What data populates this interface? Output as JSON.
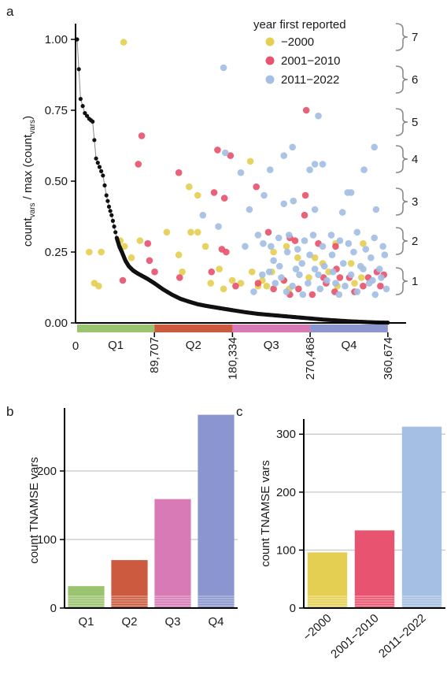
{
  "panel_labels": {
    "a": "a",
    "b": "b",
    "c": "c"
  },
  "colors": {
    "pre2000": "#e5cf52",
    "y2001_2010": "#e8546f",
    "y2011_2022": "#a4bfe3",
    "curve": "#111111",
    "q1": "#9ac46f",
    "q2": "#cc5a3e",
    "q3": "#d87ab5",
    "q4": "#8b95cf",
    "grid": "#cccccc",
    "bracket": "#8a8a8a"
  },
  "chart_data": [
    {
      "panel": "a",
      "type": "scatter",
      "ylabel": {
        "base": "count",
        "sub": "vars",
        "mid": " / max (count",
        "sub2": "vars",
        "end": ")"
      },
      "ylim": [
        0,
        1.05
      ],
      "yticks": [
        "1.00",
        "0.75",
        "0.50",
        "0.25",
        "0.00"
      ],
      "ytick_values": [
        1.0,
        0.75,
        0.5,
        0.25,
        0.0
      ],
      "xlim": [
        0,
        380000
      ],
      "xticks": [
        "0",
        "89,707",
        "180,334",
        "270,468",
        "360,674"
      ],
      "xtick_values": [
        0,
        89707,
        180334,
        270468,
        360674
      ],
      "quartiles": [
        {
          "label": "Q1",
          "start": 0,
          "end": 89707
        },
        {
          "label": "Q2",
          "start": 89707,
          "end": 180334
        },
        {
          "label": "Q3",
          "start": 180334,
          "end": 270468
        },
        {
          "label": "Q4",
          "start": 270468,
          "end": 360674
        }
      ],
      "legend": {
        "title": "year first reported",
        "entries": [
          "−2000",
          "2001−2010",
          "2011−2022"
        ],
        "placement": "top-right"
      },
      "brackets": [
        "7",
        "6",
        "5",
        "4",
        "3",
        "2",
        "1"
      ],
      "curve": {
        "x": [
          0,
          4000,
          9000,
          14000,
          18000,
          22000,
          26000,
          30000,
          34000,
          37000,
          40000,
          43000,
          46000,
          49000,
          52000,
          56000,
          60000,
          65000,
          70000,
          76000,
          82000,
          89707,
          100000,
          110000,
          120000,
          130000,
          140000,
          150000,
          160000,
          170000,
          180334,
          195000,
          210000,
          225000,
          240000,
          255000,
          270468,
          285000,
          300000,
          315000,
          330000,
          345000,
          360674
        ],
        "y": [
          1.0,
          0.79,
          0.74,
          0.72,
          0.71,
          0.58,
          0.55,
          0.52,
          0.45,
          0.41,
          0.38,
          0.34,
          0.3,
          0.27,
          0.25,
          0.22,
          0.2,
          0.185,
          0.175,
          0.165,
          0.155,
          0.14,
          0.118,
          0.1,
          0.085,
          0.075,
          0.066,
          0.06,
          0.055,
          0.05,
          0.045,
          0.038,
          0.032,
          0.028,
          0.024,
          0.02,
          0.016,
          0.012,
          0.009,
          0.006,
          0.004,
          0.002,
          0.001
        ]
      },
      "scatter_points": {
        "pre2000": [
          [
            54000,
            0.99
          ],
          [
            14000,
            0.25
          ],
          [
            28000,
            0.25
          ],
          [
            25000,
            0.13
          ],
          [
            20000,
            0.14
          ],
          [
            50000,
            0.29
          ],
          [
            55000,
            0.27
          ],
          [
            73000,
            0.29
          ],
          [
            63000,
            0.23
          ],
          [
            104000,
            0.32
          ],
          [
            132000,
            0.32
          ],
          [
            140000,
            0.32
          ],
          [
            118000,
            0.24
          ],
          [
            122000,
            0.18
          ],
          [
            140000,
            0.45
          ],
          [
            130000,
            0.48
          ],
          [
            149000,
            0.27
          ],
          [
            170000,
            0.12
          ],
          [
            180000,
            0.15
          ],
          [
            201000,
            0.57
          ],
          [
            210000,
            0.13
          ],
          [
            203000,
            0.18
          ],
          [
            215000,
            0.15
          ],
          [
            226000,
            0.18
          ],
          [
            243000,
            0.27
          ],
          [
            256000,
            0.23
          ],
          [
            269000,
            0.16
          ],
          [
            276000,
            0.23
          ],
          [
            300000,
            0.28
          ],
          [
            292000,
            0.18
          ],
          [
            322000,
            0.14
          ],
          [
            330000,
            0.16
          ],
          [
            246000,
            0.12
          ],
          [
            302000,
            0.13
          ],
          [
            240000,
            0.15
          ],
          [
            332000,
            0.28
          ],
          [
            318000,
            0.21
          ],
          [
            285000,
            0.21
          ],
          [
            228000,
            0.25
          ],
          [
            220000,
            0.13
          ],
          [
            190000,
            0.14
          ],
          [
            165000,
            0.19
          ],
          [
            155000,
            0.14
          ]
        ],
        "y2001_2010": [
          [
            75000,
            0.66
          ],
          [
            71000,
            0.56
          ],
          [
            82000,
            0.28
          ],
          [
            84000,
            0.22
          ],
          [
            53000,
            0.15
          ],
          [
            90000,
            0.18
          ],
          [
            118000,
            0.53
          ],
          [
            119000,
            0.16
          ],
          [
            163000,
            0.61
          ],
          [
            178000,
            0.59
          ],
          [
            159000,
            0.46
          ],
          [
            171000,
            0.44
          ],
          [
            173000,
            0.25
          ],
          [
            168000,
            0.26
          ],
          [
            156000,
            0.18
          ],
          [
            184000,
            0.13
          ],
          [
            208000,
            0.48
          ],
          [
            210000,
            0.14
          ],
          [
            222000,
            0.32
          ],
          [
            247000,
            0.3
          ],
          [
            253000,
            0.29
          ],
          [
            266000,
            0.75
          ],
          [
            265000,
            0.45
          ],
          [
            264000,
            0.38
          ],
          [
            280000,
            0.28
          ],
          [
            300000,
            0.27
          ],
          [
            301000,
            0.19
          ],
          [
            289000,
            0.14
          ],
          [
            305000,
            0.16
          ],
          [
            338000,
            0.16
          ],
          [
            348000,
            0.18
          ],
          [
            352000,
            0.13
          ],
          [
            247000,
            0.1
          ],
          [
            257000,
            0.12
          ],
          [
            273000,
            0.1
          ],
          [
            286000,
            0.16
          ],
          [
            322000,
            0.11
          ],
          [
            240000,
            0.15
          ],
          [
            332000,
            0.13
          ],
          [
            316000,
            0.16
          ],
          [
            356000,
            0.17
          ],
          [
            228000,
            0.12
          ],
          [
            299000,
            0.11
          ]
        ],
        "y2011_2022": [
          [
            170000,
            0.9
          ],
          [
            280000,
            0.73
          ],
          [
            172000,
            0.6
          ],
          [
            190000,
            0.53
          ],
          [
            224000,
            0.54
          ],
          [
            240000,
            0.59
          ],
          [
            250000,
            0.62
          ],
          [
            270000,
            0.54
          ],
          [
            276000,
            0.56
          ],
          [
            285000,
            0.56
          ],
          [
            314000,
            0.46
          ],
          [
            318000,
            0.46
          ],
          [
            333000,
            0.54
          ],
          [
            345000,
            0.62
          ],
          [
            146000,
            0.38
          ],
          [
            200000,
            0.4
          ],
          [
            217000,
            0.45
          ],
          [
            240000,
            0.42
          ],
          [
            251000,
            0.43
          ],
          [
            276000,
            0.4
          ],
          [
            308000,
            0.39
          ],
          [
            347000,
            0.4
          ],
          [
            164000,
            0.34
          ],
          [
            195000,
            0.27
          ],
          [
            210000,
            0.31
          ],
          [
            216000,
            0.28
          ],
          [
            225000,
            0.27
          ],
          [
            234000,
            0.3
          ],
          [
            246000,
            0.31
          ],
          [
            256000,
            0.26
          ],
          [
            264000,
            0.29
          ],
          [
            274000,
            0.31
          ],
          [
            285000,
            0.27
          ],
          [
            295000,
            0.31
          ],
          [
            305000,
            0.29
          ],
          [
            315000,
            0.28
          ],
          [
            325000,
            0.32
          ],
          [
            335000,
            0.26
          ],
          [
            345000,
            0.3
          ],
          [
            355000,
            0.27
          ],
          [
            223000,
            0.18
          ],
          [
            230000,
            0.14
          ],
          [
            237000,
            0.16
          ],
          [
            243000,
            0.11
          ],
          [
            250000,
            0.13
          ],
          [
            258000,
            0.17
          ],
          [
            262000,
            0.1
          ],
          [
            268000,
            0.14
          ],
          [
            276000,
            0.19
          ],
          [
            282000,
            0.12
          ],
          [
            290000,
            0.15
          ],
          [
            297000,
            0.18
          ],
          [
            304000,
            0.1
          ],
          [
            311000,
            0.13
          ],
          [
            318000,
            0.17
          ],
          [
            325000,
            0.11
          ],
          [
            332000,
            0.19
          ],
          [
            339000,
            0.14
          ],
          [
            346000,
            0.1
          ],
          [
            353000,
            0.16
          ],
          [
            359000,
            0.12
          ],
          [
            235000,
            0.2
          ],
          [
            261000,
            0.21
          ],
          [
            287000,
            0.2
          ],
          [
            309000,
            0.21
          ],
          [
            329000,
            0.2
          ],
          [
            351000,
            0.19
          ],
          [
            205000,
            0.11
          ],
          [
            215000,
            0.17
          ],
          [
            244000,
            0.25
          ],
          [
            296000,
            0.24
          ],
          [
            321000,
            0.25
          ],
          [
            341000,
            0.23
          ],
          [
            357000,
            0.24
          ],
          [
            270000,
            0.24
          ],
          [
            228000,
            0.22
          ],
          [
            254000,
            0.19
          ],
          [
            280000,
            0.17
          ],
          [
            300000,
            0.14
          ],
          [
            343000,
            0.15
          ]
        ]
      }
    },
    {
      "panel": "b",
      "type": "bar",
      "categories": [
        "Q1",
        "Q2",
        "Q3",
        "Q4"
      ],
      "values": [
        32,
        70,
        159,
        282
      ],
      "ylabel": "count TNAMSE vars",
      "ylim": [
        0,
        285
      ],
      "yticks": [
        "0",
        "100",
        "200"
      ],
      "ytick_values": [
        0,
        100,
        200
      ],
      "grid": true
    },
    {
      "panel": "c",
      "type": "bar",
      "categories": [
        "−2000",
        "2001−2010",
        "2011−2022"
      ],
      "values": [
        96,
        134,
        313
      ],
      "ylabel": "count TNAMSE vars",
      "ylim": [
        0,
        318
      ],
      "yticks": [
        "0",
        "100",
        "200",
        "300"
      ],
      "ytick_values": [
        0,
        100,
        200,
        300
      ],
      "grid": true
    }
  ]
}
